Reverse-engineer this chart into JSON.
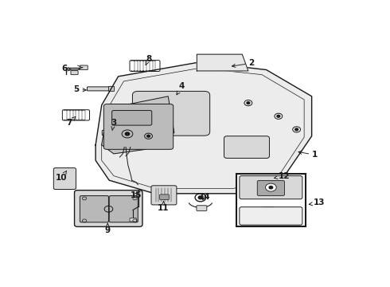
{
  "bg_color": "#ffffff",
  "line_color": "#1a1a1a",
  "fig_width": 4.9,
  "fig_height": 3.6,
  "dpi": 100,
  "label_positions": {
    "1": [
      0.88,
      0.455,
      0.82,
      0.47
    ],
    "2": [
      0.67,
      0.87,
      0.6,
      0.855
    ],
    "3": [
      0.215,
      0.6,
      0.21,
      0.565
    ],
    "4": [
      0.44,
      0.765,
      0.42,
      0.72
    ],
    "5": [
      0.092,
      0.75,
      0.13,
      0.748
    ],
    "6": [
      0.052,
      0.845,
      0.08,
      0.838
    ],
    "7": [
      0.068,
      0.6,
      0.09,
      0.63
    ],
    "8": [
      0.33,
      0.89,
      0.32,
      0.86
    ],
    "9": [
      0.195,
      0.115,
      0.195,
      0.148
    ],
    "10": [
      0.042,
      0.35,
      0.06,
      0.385
    ],
    "11": [
      0.38,
      0.215,
      0.38,
      0.248
    ],
    "12": [
      0.778,
      0.36,
      0.74,
      0.348
    ],
    "13": [
      0.896,
      0.238,
      0.855,
      0.23
    ],
    "14": [
      0.516,
      0.265,
      0.505,
      0.245
    ],
    "15": [
      0.288,
      0.272,
      0.298,
      0.295
    ]
  }
}
